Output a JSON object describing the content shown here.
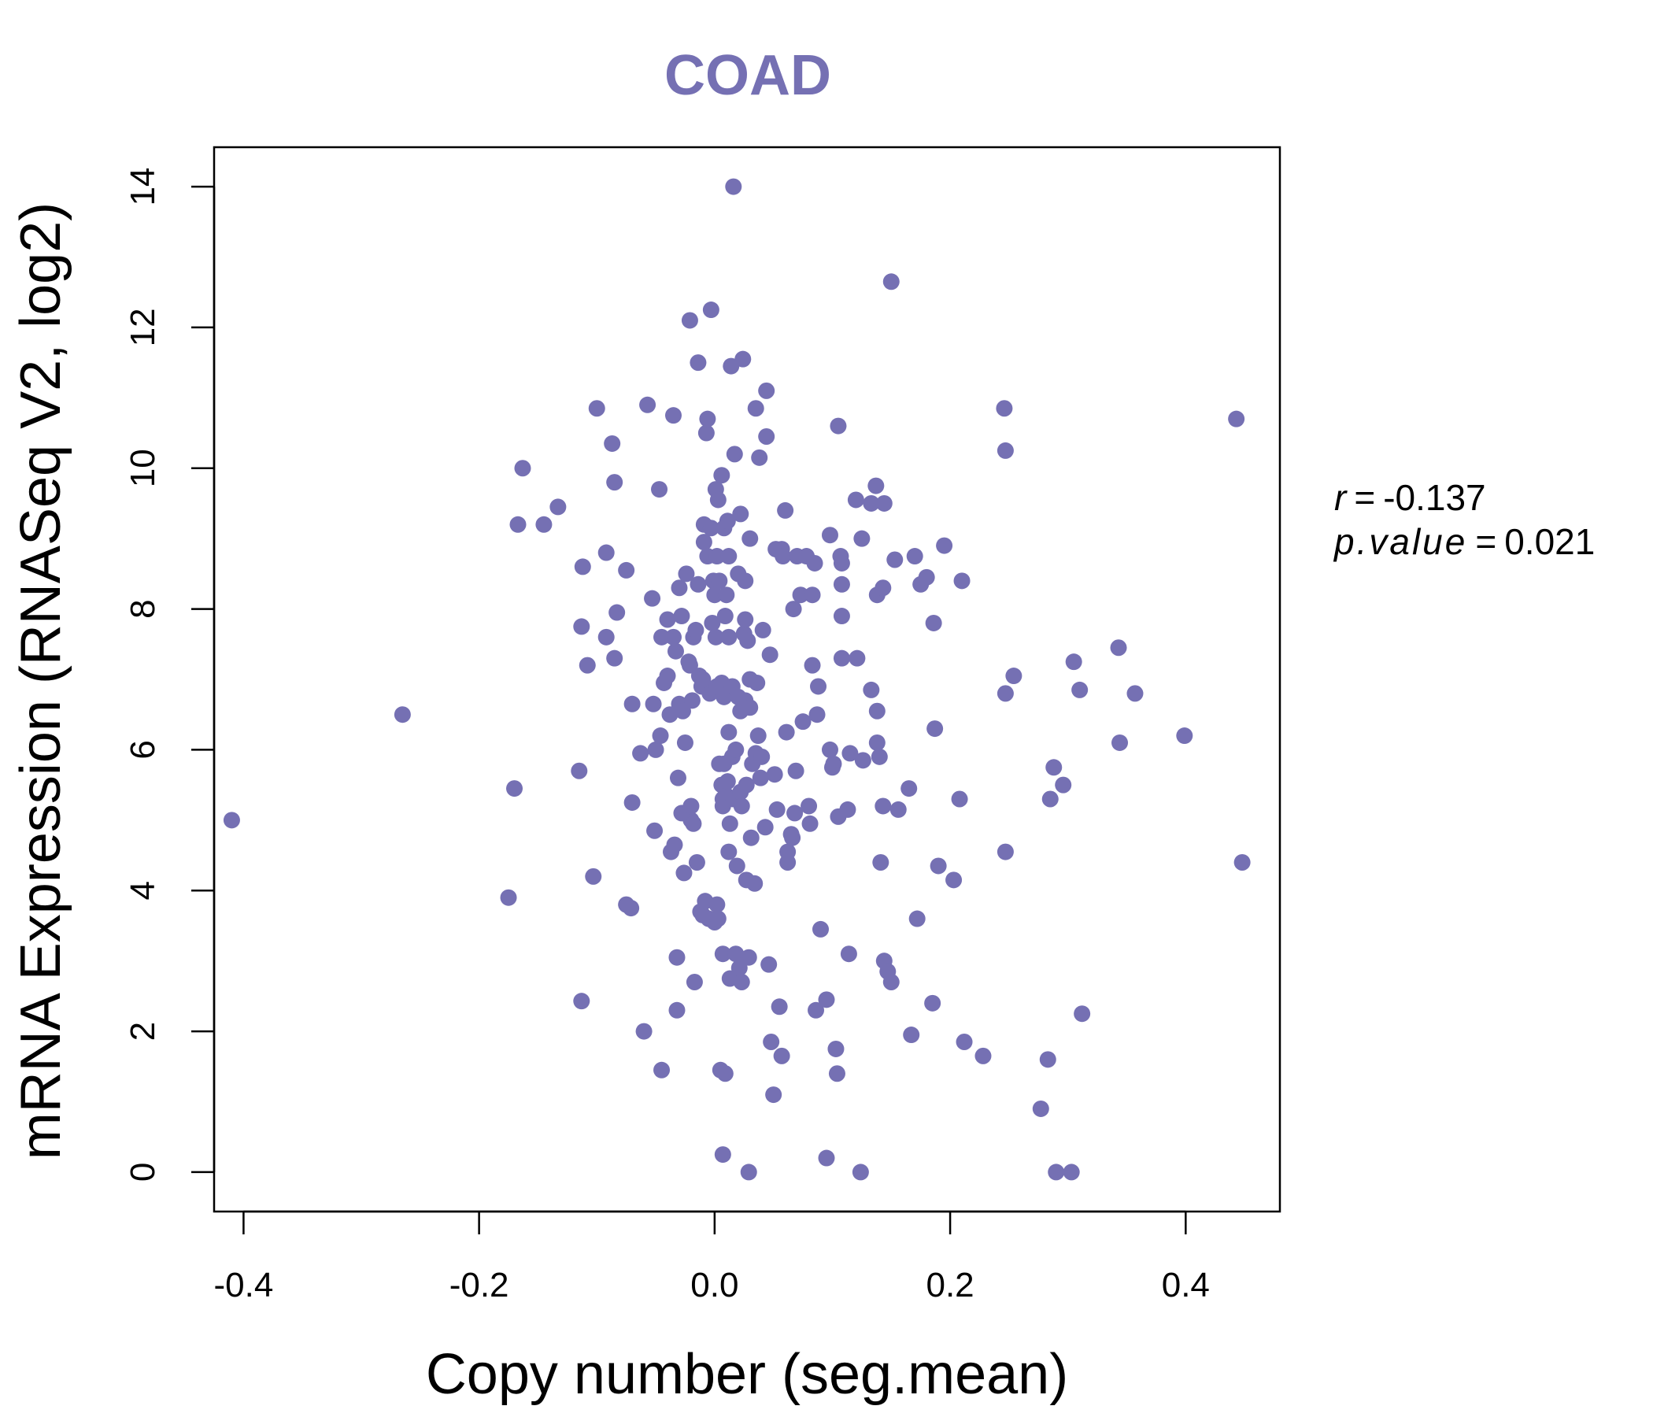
{
  "chart_data": {
    "type": "scatter",
    "title": "COAD",
    "xlabel": "Copy number (seg.mean)",
    "ylabel": "mRNA Expression (RNASeq V2, log2)",
    "xlim": [
      -0.425,
      0.48
    ],
    "ylim": [
      -0.56,
      14.56
    ],
    "x_ticks": [
      -0.4,
      -0.2,
      0.0,
      0.2,
      0.4
    ],
    "x_tick_labels": [
      "-0.4",
      "-0.2",
      "0.0",
      "0.2",
      "0.4"
    ],
    "y_ticks": [
      0,
      2,
      4,
      6,
      8,
      10,
      12,
      14
    ],
    "y_tick_labels": [
      "0",
      "2",
      "4",
      "6",
      "8",
      "10",
      "12",
      "14"
    ],
    "grid": false,
    "point_color": "#7570b3",
    "stats": {
      "r_label": "r",
      "r_value": "-0.137",
      "p_label": "p.value",
      "p_value": "0.021"
    },
    "points": [
      [
        -0.41,
        5.0
      ],
      [
        -0.265,
        6.5
      ],
      [
        -0.175,
        3.9
      ],
      [
        -0.17,
        5.45
      ],
      [
        -0.167,
        9.2
      ],
      [
        -0.163,
        10.0
      ],
      [
        -0.145,
        9.2
      ],
      [
        -0.133,
        9.45
      ],
      [
        -0.115,
        5.7
      ],
      [
        -0.113,
        7.75
      ],
      [
        -0.112,
        8.6
      ],
      [
        -0.113,
        2.43
      ],
      [
        -0.108,
        7.2
      ],
      [
        -0.103,
        4.2
      ],
      [
        -0.1,
        10.85
      ],
      [
        -0.092,
        7.6
      ],
      [
        -0.092,
        8.8
      ],
      [
        -0.087,
        10.35
      ],
      [
        -0.085,
        9.8
      ],
      [
        -0.085,
        7.3
      ],
      [
        -0.083,
        7.95
      ],
      [
        -0.075,
        8.55
      ],
      [
        -0.075,
        3.8
      ],
      [
        -0.071,
        3.75
      ],
      [
        -0.07,
        6.65
      ],
      [
        -0.07,
        5.25
      ],
      [
        -0.063,
        5.95
      ],
      [
        -0.06,
        2.0
      ],
      [
        -0.057,
        10.9
      ],
      [
        -0.053,
        8.15
      ],
      [
        -0.052,
        6.65
      ],
      [
        -0.051,
        4.85
      ],
      [
        -0.05,
        6.0
      ],
      [
        -0.047,
        9.7
      ],
      [
        -0.046,
        6.2
      ],
      [
        -0.045,
        7.6
      ],
      [
        -0.045,
        1.45
      ],
      [
        -0.043,
        6.95
      ],
      [
        -0.04,
        7.05
      ],
      [
        -0.04,
        7.85
      ],
      [
        -0.038,
        6.5
      ],
      [
        -0.037,
        4.55
      ],
      [
        -0.035,
        7.6
      ],
      [
        -0.035,
        10.75
      ],
      [
        -0.034,
        4.65
      ],
      [
        -0.033,
        7.4
      ],
      [
        -0.032,
        2.3
      ],
      [
        -0.032,
        3.05
      ],
      [
        -0.031,
        5.6
      ],
      [
        -0.03,
        6.65
      ],
      [
        -0.03,
        8.3
      ],
      [
        -0.028,
        7.9
      ],
      [
        -0.028,
        5.1
      ],
      [
        -0.027,
        6.55
      ],
      [
        -0.026,
        4.25
      ],
      [
        -0.025,
        6.1
      ],
      [
        -0.024,
        8.5
      ],
      [
        -0.022,
        7.25
      ],
      [
        -0.021,
        12.1
      ],
      [
        -0.021,
        7.2
      ],
      [
        -0.02,
        5.0
      ],
      [
        -0.02,
        5.2
      ],
      [
        -0.019,
        6.7
      ],
      [
        -0.018,
        7.6
      ],
      [
        -0.018,
        4.95
      ],
      [
        -0.017,
        2.7
      ],
      [
        -0.016,
        7.7
      ],
      [
        -0.015,
        4.4
      ],
      [
        -0.014,
        11.5
      ],
      [
        -0.014,
        8.35
      ],
      [
        -0.013,
        7.05
      ],
      [
        -0.012,
        3.7
      ],
      [
        -0.011,
        6.9
      ],
      [
        -0.01,
        3.65
      ],
      [
        -0.01,
        7.0
      ],
      [
        -0.009,
        9.2
      ],
      [
        -0.009,
        8.95
      ],
      [
        -0.008,
        3.85
      ],
      [
        -0.007,
        10.5
      ],
      [
        -0.006,
        10.7
      ],
      [
        -0.006,
        8.75
      ],
      [
        -0.005,
        3.6
      ],
      [
        -0.004,
        6.8
      ],
      [
        -0.003,
        12.25
      ],
      [
        -0.003,
        9.15
      ],
      [
        -0.002,
        7.8
      ],
      [
        -0.001,
        8.4
      ],
      [
        0.0,
        3.55
      ],
      [
        0.0,
        8.2
      ],
      [
        0.001,
        9.7
      ],
      [
        0.001,
        7.6
      ],
      [
        0.002,
        8.75
      ],
      [
        0.002,
        6.9
      ],
      [
        0.002,
        3.8
      ],
      [
        0.003,
        9.55
      ],
      [
        0.003,
        3.6
      ],
      [
        0.004,
        5.8
      ],
      [
        0.004,
        8.4
      ],
      [
        0.005,
        1.45
      ],
      [
        0.006,
        9.9
      ],
      [
        0.006,
        6.95
      ],
      [
        0.006,
        5.5
      ],
      [
        0.007,
        0.25
      ],
      [
        0.007,
        5.3
      ],
      [
        0.007,
        5.2
      ],
      [
        0.007,
        3.1
      ],
      [
        0.008,
        5.8
      ],
      [
        0.008,
        9.15
      ],
      [
        0.008,
        6.75
      ],
      [
        0.009,
        1.4
      ],
      [
        0.009,
        7.9
      ],
      [
        0.01,
        5.35
      ],
      [
        0.01,
        8.2
      ],
      [
        0.011,
        5.55
      ],
      [
        0.011,
        6.8
      ],
      [
        0.011,
        9.25
      ],
      [
        0.012,
        4.55
      ],
      [
        0.012,
        6.25
      ],
      [
        0.012,
        7.6
      ],
      [
        0.012,
        8.75
      ],
      [
        0.013,
        4.95
      ],
      [
        0.013,
        2.75
      ],
      [
        0.014,
        11.45
      ],
      [
        0.015,
        6.9
      ],
      [
        0.015,
        5.9
      ],
      [
        0.016,
        5.3
      ],
      [
        0.016,
        14.0
      ],
      [
        0.017,
        10.2
      ],
      [
        0.018,
        6.0
      ],
      [
        0.018,
        3.1
      ],
      [
        0.019,
        4.35
      ],
      [
        0.02,
        8.5
      ],
      [
        0.02,
        6.75
      ],
      [
        0.021,
        2.9
      ],
      [
        0.022,
        9.35
      ],
      [
        0.022,
        6.55
      ],
      [
        0.022,
        5.4
      ],
      [
        0.023,
        5.2
      ],
      [
        0.023,
        2.7
      ],
      [
        0.024,
        11.55
      ],
      [
        0.025,
        7.65
      ],
      [
        0.026,
        8.4
      ],
      [
        0.026,
        6.7
      ],
      [
        0.026,
        7.85
      ],
      [
        0.027,
        5.5
      ],
      [
        0.027,
        4.15
      ],
      [
        0.028,
        7.55
      ],
      [
        0.029,
        0.0
      ],
      [
        0.029,
        3.05
      ],
      [
        0.03,
        6.6
      ],
      [
        0.03,
        7.0
      ],
      [
        0.03,
        9.0
      ],
      [
        0.031,
        4.75
      ],
      [
        0.032,
        5.8
      ],
      [
        0.034,
        4.1
      ],
      [
        0.035,
        5.95
      ],
      [
        0.035,
        10.85
      ],
      [
        0.036,
        6.95
      ],
      [
        0.037,
        6.2
      ],
      [
        0.038,
        10.15
      ],
      [
        0.039,
        5.6
      ],
      [
        0.04,
        5.9
      ],
      [
        0.041,
        7.7
      ],
      [
        0.043,
        4.9
      ],
      [
        0.044,
        11.1
      ],
      [
        0.044,
        10.45
      ],
      [
        0.046,
        2.95
      ],
      [
        0.047,
        7.35
      ],
      [
        0.048,
        1.85
      ],
      [
        0.05,
        1.1
      ],
      [
        0.051,
        5.65
      ],
      [
        0.052,
        8.85
      ],
      [
        0.053,
        5.15
      ],
      [
        0.055,
        2.35
      ],
      [
        0.057,
        8.85
      ],
      [
        0.057,
        1.65
      ],
      [
        0.058,
        8.75
      ],
      [
        0.06,
        9.4
      ],
      [
        0.061,
        6.25
      ],
      [
        0.062,
        4.4
      ],
      [
        0.062,
        4.55
      ],
      [
        0.065,
        4.8
      ],
      [
        0.066,
        4.75
      ],
      [
        0.067,
        8.0
      ],
      [
        0.068,
        5.1
      ],
      [
        0.069,
        5.7
      ],
      [
        0.07,
        8.75
      ],
      [
        0.073,
        8.2
      ],
      [
        0.075,
        6.4
      ],
      [
        0.078,
        8.75
      ],
      [
        0.08,
        5.2
      ],
      [
        0.081,
        4.95
      ],
      [
        0.083,
        8.2
      ],
      [
        0.083,
        7.2
      ],
      [
        0.085,
        8.65
      ],
      [
        0.086,
        2.3
      ],
      [
        0.087,
        6.5
      ],
      [
        0.088,
        6.9
      ],
      [
        0.09,
        3.45
      ],
      [
        0.095,
        2.45
      ],
      [
        0.095,
        0.2
      ],
      [
        0.098,
        9.05
      ],
      [
        0.098,
        6.0
      ],
      [
        0.1,
        5.75
      ],
      [
        0.101,
        5.8
      ],
      [
        0.103,
        1.75
      ],
      [
        0.104,
        1.4
      ],
      [
        0.105,
        10.6
      ],
      [
        0.105,
        5.05
      ],
      [
        0.107,
        8.75
      ],
      [
        0.108,
        8.65
      ],
      [
        0.108,
        7.3
      ],
      [
        0.108,
        8.35
      ],
      [
        0.108,
        7.9
      ],
      [
        0.113,
        5.15
      ],
      [
        0.114,
        3.1
      ],
      [
        0.115,
        5.95
      ],
      [
        0.12,
        9.55
      ],
      [
        0.121,
        7.3
      ],
      [
        0.124,
        0.0
      ],
      [
        0.125,
        9.0
      ],
      [
        0.126,
        5.85
      ],
      [
        0.133,
        6.85
      ],
      [
        0.133,
        9.5
      ],
      [
        0.137,
        9.75
      ],
      [
        0.138,
        6.55
      ],
      [
        0.138,
        6.1
      ],
      [
        0.138,
        8.2
      ],
      [
        0.14,
        5.9
      ],
      [
        0.141,
        4.4
      ],
      [
        0.143,
        8.3
      ],
      [
        0.143,
        5.2
      ],
      [
        0.144,
        9.5
      ],
      [
        0.144,
        3.0
      ],
      [
        0.147,
        2.85
      ],
      [
        0.15,
        12.65
      ],
      [
        0.15,
        2.7
      ],
      [
        0.153,
        8.7
      ],
      [
        0.156,
        5.15
      ],
      [
        0.165,
        5.45
      ],
      [
        0.167,
        1.95
      ],
      [
        0.17,
        8.75
      ],
      [
        0.172,
        3.6
      ],
      [
        0.175,
        8.35
      ],
      [
        0.18,
        8.45
      ],
      [
        0.185,
        2.4
      ],
      [
        0.186,
        7.8
      ],
      [
        0.187,
        6.3
      ],
      [
        0.19,
        4.35
      ],
      [
        0.195,
        8.9
      ],
      [
        0.203,
        4.15
      ],
      [
        0.208,
        5.3
      ],
      [
        0.21,
        8.4
      ],
      [
        0.212,
        1.85
      ],
      [
        0.228,
        1.65
      ],
      [
        0.246,
        10.85
      ],
      [
        0.247,
        10.25
      ],
      [
        0.247,
        6.8
      ],
      [
        0.247,
        4.55
      ],
      [
        0.254,
        7.05
      ],
      [
        0.277,
        0.9
      ],
      [
        0.283,
        1.6
      ],
      [
        0.285,
        5.3
      ],
      [
        0.288,
        5.75
      ],
      [
        0.29,
        0.0
      ],
      [
        0.296,
        5.5
      ],
      [
        0.303,
        0.0
      ],
      [
        0.305,
        7.25
      ],
      [
        0.31,
        6.85
      ],
      [
        0.312,
        2.25
      ],
      [
        0.343,
        7.45
      ],
      [
        0.344,
        6.1
      ],
      [
        0.357,
        6.8
      ],
      [
        0.399,
        6.2
      ],
      [
        0.443,
        10.7
      ],
      [
        0.448,
        4.4
      ]
    ]
  }
}
